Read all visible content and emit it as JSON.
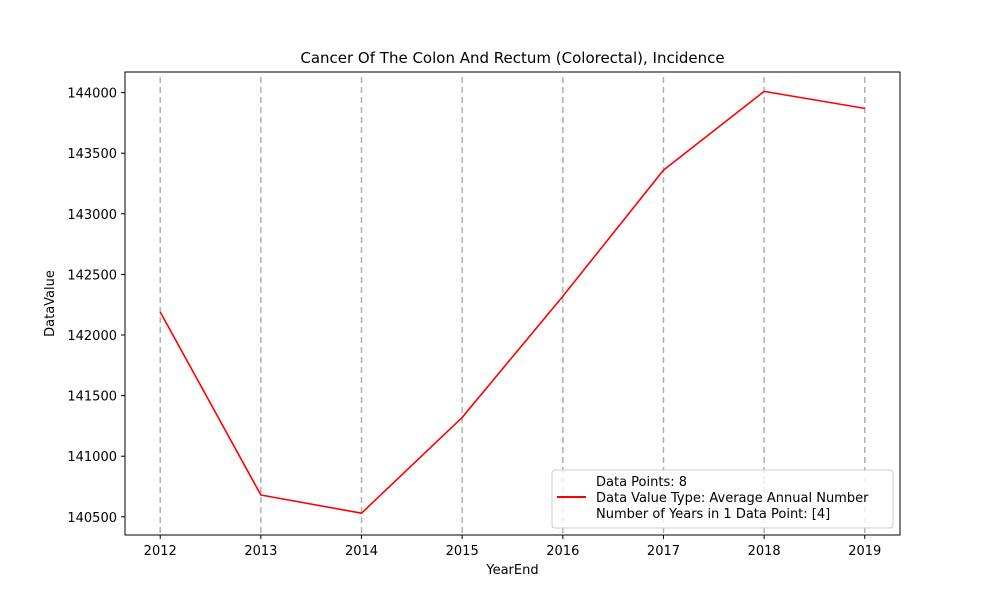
{
  "chart_data": {
    "type": "line",
    "title": "Cancer Of The Colon And Rectum (Colorectal), Incidence",
    "xlabel": "YearEnd",
    "ylabel": "DataValue",
    "x": [
      2012,
      2013,
      2014,
      2015,
      2016,
      2017,
      2018,
      2019
    ],
    "series": [
      {
        "name": "Data Value Type: Average Annual Number",
        "color": "#ff0000",
        "values": [
          142190,
          140680,
          140530,
          141320,
          142320,
          143360,
          144010,
          143870
        ]
      }
    ],
    "xlim": [
      2011.65,
      2019.35
    ],
    "ylim": [
      140350,
      144170
    ],
    "xticks": [
      2012,
      2013,
      2014,
      2015,
      2016,
      2017,
      2018,
      2019
    ],
    "yticks": [
      140500,
      141000,
      141500,
      142000,
      142500,
      143000,
      143500,
      144000
    ],
    "vertical_gridlines": true,
    "gridline_color": "#b0b0b0",
    "gridline_style": "dashed",
    "legend": {
      "placement": "lower-right",
      "entries": [
        "Data Points: 8",
        "Data Value Type: Average Annual Number",
        "Number of Years in 1 Data Point: [4]"
      ]
    }
  }
}
